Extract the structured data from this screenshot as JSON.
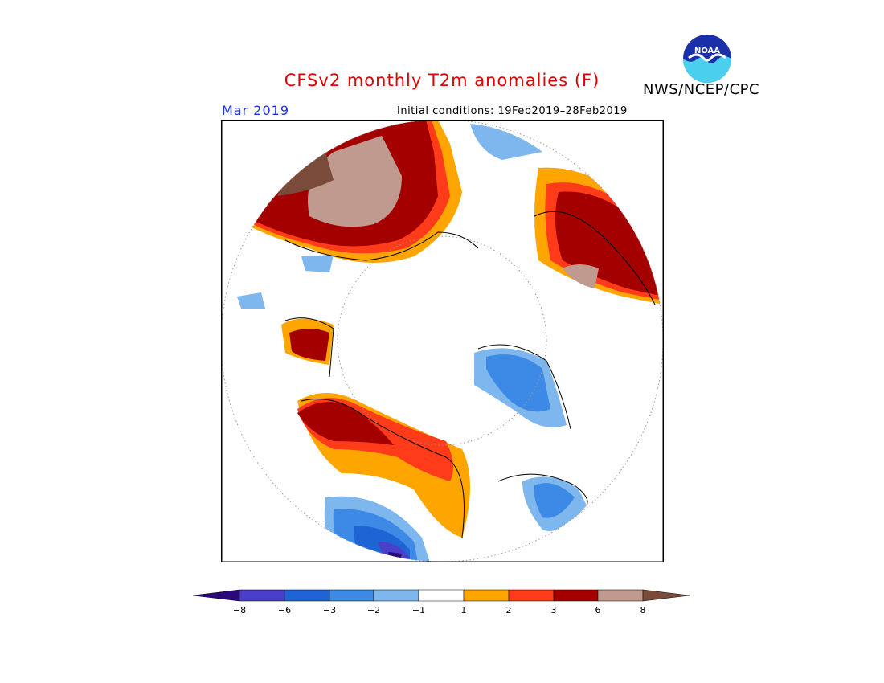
{
  "title": "CFSv2 monthly T2m anomalies (F)",
  "agency": "NWS/NCEP/CPC",
  "logo_text": "NOAA",
  "month": "Mar 2019",
  "initial_conditions": "Initial conditions: 19Feb2019–28Feb2019",
  "colorbar": {
    "ticks": [
      "−8",
      "−6",
      "−3",
      "−2",
      "−1",
      "1",
      "2",
      "3",
      "6",
      "8"
    ],
    "colors": [
      "#2a0a7a",
      "#4a3fc8",
      "#1f64d4",
      "#3d8ae6",
      "#7db7ee",
      "#ffffff",
      "#ffa500",
      "#ff3b1a",
      "#a50000",
      "#c09a8e",
      "#7a4b3a"
    ]
  }
}
